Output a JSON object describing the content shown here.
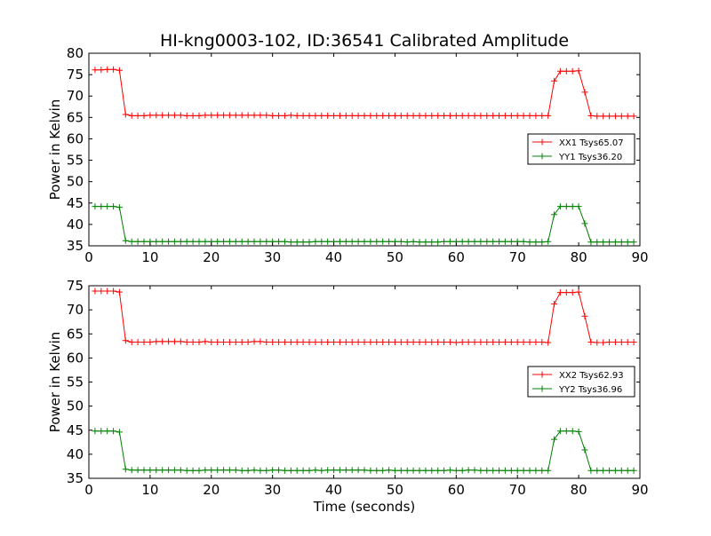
{
  "chart_data": {
    "type": "line",
    "title": "HI-kng0003-102, ID:36541 Calibrated Amplitude",
    "x": [
      1,
      2,
      3,
      4,
      5,
      6,
      7,
      8,
      9,
      10,
      11,
      12,
      13,
      14,
      15,
      16,
      17,
      18,
      19,
      20,
      21,
      22,
      23,
      24,
      25,
      26,
      27,
      28,
      29,
      30,
      31,
      32,
      33,
      34,
      35,
      36,
      37,
      38,
      39,
      40,
      41,
      42,
      43,
      44,
      45,
      46,
      47,
      48,
      49,
      50,
      51,
      52,
      53,
      54,
      55,
      56,
      57,
      58,
      59,
      60,
      61,
      62,
      63,
      64,
      65,
      66,
      67,
      68,
      69,
      70,
      71,
      72,
      73,
      74,
      75,
      76,
      77,
      78,
      79,
      80,
      81,
      82,
      83,
      84,
      85,
      86,
      87,
      88,
      89
    ],
    "panels": [
      {
        "ylabel": "Power in Kelvin",
        "xlabel": "",
        "xlim": [
          0,
          90
        ],
        "ylim": [
          35,
          80
        ],
        "xticks": [
          "0",
          "10",
          "20",
          "30",
          "40",
          "50",
          "60",
          "70",
          "80",
          "90"
        ],
        "yticks": [
          "35",
          "40",
          "45",
          "50",
          "55",
          "60",
          "65",
          "70",
          "75",
          "80"
        ],
        "legend_position": "center-right",
        "series": [
          {
            "name": "XX1 Tsys65.07",
            "color": "#ff0000",
            "values": [
              76.1,
              76.1,
              76.2,
              76.2,
              76.0,
              65.7,
              65.4,
              65.4,
              65.4,
              65.5,
              65.5,
              65.5,
              65.5,
              65.5,
              65.5,
              65.4,
              65.4,
              65.4,
              65.5,
              65.5,
              65.5,
              65.5,
              65.5,
              65.5,
              65.5,
              65.5,
              65.5,
              65.5,
              65.5,
              65.4,
              65.4,
              65.4,
              65.5,
              65.4,
              65.4,
              65.4,
              65.4,
              65.4,
              65.4,
              65.4,
              65.4,
              65.4,
              65.4,
              65.4,
              65.4,
              65.4,
              65.4,
              65.4,
              65.4,
              65.4,
              65.4,
              65.4,
              65.4,
              65.4,
              65.4,
              65.4,
              65.4,
              65.4,
              65.4,
              65.4,
              65.4,
              65.4,
              65.4,
              65.4,
              65.4,
              65.4,
              65.4,
              65.4,
              65.4,
              65.4,
              65.4,
              65.4,
              65.4,
              65.4,
              65.4,
              73.5,
              75.8,
              75.8,
              75.8,
              75.9,
              70.9,
              65.4,
              65.3,
              65.3,
              65.3,
              65.3,
              65.3,
              65.3,
              65.3
            ]
          },
          {
            "name": "YY1 Tsys36.20",
            "color": "#008000",
            "values": [
              44.2,
              44.2,
              44.2,
              44.2,
              44.0,
              36.2,
              36.0,
              36.0,
              36.0,
              36.0,
              36.0,
              36.0,
              36.0,
              36.0,
              36.0,
              36.0,
              36.0,
              36.0,
              36.0,
              36.0,
              36.0,
              36.0,
              36.0,
              36.0,
              36.0,
              36.0,
              36.0,
              36.0,
              36.0,
              36.0,
              36.0,
              36.0,
              35.9,
              35.9,
              35.9,
              35.9,
              36.0,
              36.0,
              36.0,
              36.0,
              36.0,
              36.0,
              36.0,
              36.0,
              36.0,
              36.0,
              36.0,
              36.0,
              36.0,
              36.0,
              36.0,
              35.9,
              36.0,
              35.9,
              35.9,
              35.9,
              35.9,
              36.0,
              36.0,
              36.0,
              36.0,
              36.0,
              36.0,
              36.0,
              36.0,
              36.0,
              36.0,
              36.0,
              36.0,
              36.0,
              36.0,
              35.9,
              35.9,
              35.9,
              36.0,
              42.3,
              44.2,
              44.2,
              44.2,
              44.2,
              40.2,
              35.9,
              35.9,
              35.9,
              35.9,
              35.9,
              35.9,
              35.9,
              35.9
            ]
          }
        ]
      },
      {
        "ylabel": "Power in Kelvin",
        "xlabel": "Time (seconds)",
        "xlim": [
          0,
          90
        ],
        "ylim": [
          35,
          75
        ],
        "xticks": [
          "0",
          "10",
          "20",
          "30",
          "40",
          "50",
          "60",
          "70",
          "80",
          "90"
        ],
        "yticks": [
          "35",
          "40",
          "45",
          "50",
          "55",
          "60",
          "65",
          "70",
          "75"
        ],
        "legend_position": "center-right",
        "series": [
          {
            "name": "XX2 Tsys62.93",
            "color": "#ff0000",
            "values": [
              73.9,
              73.9,
              73.9,
              73.9,
              73.7,
              63.6,
              63.3,
              63.3,
              63.3,
              63.3,
              63.4,
              63.4,
              63.4,
              63.4,
              63.4,
              63.3,
              63.3,
              63.3,
              63.4,
              63.3,
              63.3,
              63.3,
              63.3,
              63.3,
              63.3,
              63.3,
              63.4,
              63.4,
              63.3,
              63.3,
              63.3,
              63.3,
              63.3,
              63.3,
              63.3,
              63.3,
              63.3,
              63.3,
              63.3,
              63.3,
              63.3,
              63.3,
              63.3,
              63.3,
              63.3,
              63.3,
              63.3,
              63.3,
              63.3,
              63.3,
              63.3,
              63.3,
              63.3,
              63.3,
              63.3,
              63.3,
              63.3,
              63.3,
              63.3,
              63.2,
              63.3,
              63.3,
              63.3,
              63.3,
              63.3,
              63.3,
              63.3,
              63.3,
              63.3,
              63.3,
              63.3,
              63.3,
              63.3,
              63.3,
              63.2,
              71.2,
              73.6,
              73.6,
              73.6,
              73.7,
              68.7,
              63.3,
              63.2,
              63.2,
              63.3,
              63.3,
              63.3,
              63.3,
              63.3
            ]
          },
          {
            "name": "YY2 Tsys36.96",
            "color": "#008000",
            "values": [
              44.8,
              44.8,
              44.8,
              44.8,
              44.6,
              36.9,
              36.7,
              36.7,
              36.7,
              36.7,
              36.7,
              36.7,
              36.7,
              36.7,
              36.7,
              36.6,
              36.6,
              36.6,
              36.7,
              36.7,
              36.7,
              36.7,
              36.7,
              36.7,
              36.6,
              36.6,
              36.7,
              36.6,
              36.6,
              36.7,
              36.7,
              36.6,
              36.6,
              36.6,
              36.6,
              36.6,
              36.7,
              36.6,
              36.7,
              36.7,
              36.7,
              36.7,
              36.7,
              36.7,
              36.7,
              36.6,
              36.6,
              36.6,
              36.7,
              36.6,
              36.6,
              36.6,
              36.6,
              36.6,
              36.6,
              36.6,
              36.6,
              36.6,
              36.7,
              36.6,
              36.6,
              36.7,
              36.7,
              36.6,
              36.6,
              36.6,
              36.6,
              36.6,
              36.6,
              36.6,
              36.6,
              36.6,
              36.6,
              36.6,
              36.6,
              43.1,
              44.8,
              44.8,
              44.8,
              44.7,
              40.9,
              36.6,
              36.6,
              36.6,
              36.6,
              36.6,
              36.6,
              36.6,
              36.6
            ]
          }
        ]
      }
    ]
  }
}
